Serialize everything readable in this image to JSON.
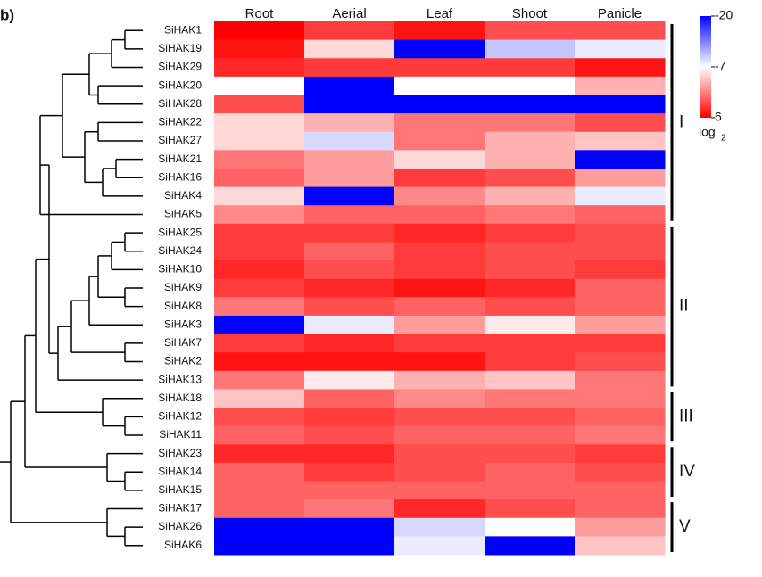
{
  "chart_data": {
    "type": "heatmap",
    "panel_label": "b)",
    "columns": [
      "Root",
      "Aerial",
      "Leaf",
      "Shoot",
      "Panicle"
    ],
    "rows": [
      "SiHAK1",
      "SiHAK19",
      "SiHAK29",
      "SiHAK20",
      "SiHAK28",
      "SiHAK22",
      "SiHAK27",
      "SiHAK21",
      "SiHAK16",
      "SiHAK4",
      "SiHAK5",
      "SiHAK25",
      "SiHAK24",
      "SiHAK10",
      "SiHAK9",
      "SiHAK8",
      "SiHAK3",
      "SiHAK7",
      "SiHAK2",
      "SiHAK13",
      "SiHAK18",
      "SiHAK12",
      "SiHAK11",
      "SiHAK23",
      "SiHAK14",
      "SiHAK15",
      "SiHAK17",
      "SiHAK26",
      "SiHAK6"
    ],
    "values": [
      [
        6,
        3,
        5,
        2,
        2
      ],
      [
        5,
        -5,
        -20,
        -10,
        -8
      ],
      [
        4,
        3,
        3,
        3,
        5
      ],
      [
        -7,
        -20,
        -7,
        -7,
        -3
      ],
      [
        2,
        -20,
        -20,
        -20,
        -20
      ],
      [
        -5,
        -3,
        0,
        0,
        2
      ],
      [
        -5,
        -9,
        0,
        -3,
        -4
      ],
      [
        0,
        -2,
        -5,
        -3,
        -20
      ],
      [
        1,
        -2,
        3,
        2,
        -2
      ],
      [
        -5,
        -20,
        -1,
        -3,
        -8
      ],
      [
        -1,
        1,
        1,
        0,
        1
      ],
      [
        3,
        3,
        4,
        3,
        2
      ],
      [
        3,
        1,
        3,
        2,
        2
      ],
      [
        4,
        2,
        3,
        2,
        3
      ],
      [
        3,
        4,
        5,
        4,
        1
      ],
      [
        0,
        2,
        1,
        2,
        1
      ],
      [
        -20,
        -8,
        -2,
        -6,
        -2
      ],
      [
        3,
        4,
        3,
        3,
        3
      ],
      [
        5,
        5,
        5,
        3,
        2
      ],
      [
        0,
        -6,
        -3,
        -4,
        0
      ],
      [
        -4,
        1,
        -1,
        0,
        0
      ],
      [
        2,
        3,
        2,
        2,
        1
      ],
      [
        1,
        2,
        1,
        1,
        0
      ],
      [
        4,
        4,
        2,
        2,
        3
      ],
      [
        1,
        3,
        2,
        1,
        2
      ],
      [
        1,
        1,
        1,
        1,
        1
      ],
      [
        1,
        0,
        4,
        2,
        1
      ],
      [
        -20,
        -20,
        -9,
        -7,
        -2
      ],
      [
        -20,
        -20,
        -8,
        -20,
        -4
      ]
    ],
    "clim": [
      -20,
      6
    ],
    "colorbar_ticks": [
      -20,
      -7,
      6
    ],
    "colors": {
      "low": "#0000ff",
      "mid": "#ffffff",
      "high": "#ff0000"
    },
    "colorbar_label": "log",
    "colorbar_label_sub": "2",
    "groups": [
      {
        "label": "I",
        "first": "SiHAK1",
        "last": "SiHAK5"
      },
      {
        "label": "II",
        "first": "SiHAK25",
        "last": "SiHAK13"
      },
      {
        "label": "III",
        "first": "SiHAK18",
        "last": "SiHAK11"
      },
      {
        "label": "IV",
        "first": "SiHAK23",
        "last": "SiHAK15"
      },
      {
        "label": "V",
        "first": "SiHAK17",
        "last": "SiHAK6"
      }
    ]
  }
}
